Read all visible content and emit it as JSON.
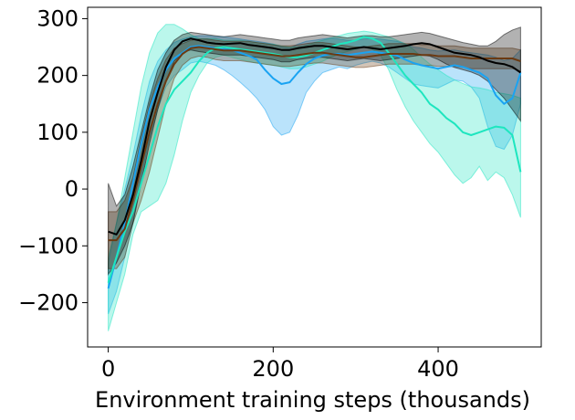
{
  "chart_data": {
    "type": "line",
    "title": "",
    "xlabel": "Environment training steps (thousands)",
    "ylabel": "",
    "xlim": [
      -25,
      525
    ],
    "ylim": [
      -278,
      320
    ],
    "xticks": [
      0,
      200,
      400
    ],
    "yticks": [
      -200,
      -100,
      0,
      100,
      200,
      300
    ],
    "xtick_labels": [
      "0",
      "200",
      "400"
    ],
    "ytick_labels": [
      "−200",
      "−100",
      "0",
      "100",
      "200",
      "300"
    ],
    "grid": false,
    "legend": "none",
    "x": [
      0,
      10,
      20,
      30,
      40,
      50,
      60,
      70,
      80,
      90,
      100,
      110,
      120,
      130,
      140,
      150,
      160,
      170,
      180,
      190,
      200,
      210,
      220,
      230,
      240,
      250,
      260,
      270,
      280,
      290,
      300,
      310,
      320,
      330,
      340,
      350,
      360,
      370,
      380,
      390,
      400,
      410,
      420,
      430,
      440,
      450,
      460,
      470,
      480,
      490,
      500
    ],
    "series": [
      {
        "color": "#1aa3f2",
        "values": [
          -175,
          -120,
          -60,
          10,
          80,
          140,
          180,
          210,
          230,
          240,
          250,
          252,
          250,
          248,
          246,
          245,
          240,
          235,
          228,
          210,
          195,
          185,
          188,
          205,
          220,
          230,
          235,
          238,
          238,
          236,
          238,
          240,
          242,
          240,
          238,
          235,
          228,
          222,
          218,
          215,
          212,
          215,
          218,
          215,
          210,
          205,
          195,
          165,
          150,
          160,
          205
        ],
        "lower": [
          -220,
          -180,
          -120,
          -60,
          20,
          90,
          140,
          180,
          200,
          210,
          222,
          225,
          222,
          218,
          210,
          200,
          188,
          175,
          160,
          140,
          110,
          95,
          100,
          130,
          170,
          190,
          205,
          210,
          215,
          212,
          218,
          222,
          225,
          222,
          215,
          205,
          195,
          185,
          182,
          180,
          178,
          185,
          192,
          190,
          180,
          160,
          110,
          75,
          70,
          95,
          150
        ],
        "upper": [
          -130,
          -60,
          0,
          60,
          130,
          190,
          225,
          245,
          258,
          264,
          268,
          270,
          270,
          268,
          268,
          266,
          264,
          262,
          260,
          258,
          255,
          250,
          248,
          255,
          260,
          262,
          264,
          266,
          264,
          262,
          262,
          264,
          265,
          264,
          262,
          260,
          255,
          250,
          248,
          245,
          243,
          244,
          245,
          242,
          240,
          238,
          236,
          232,
          226,
          230,
          245
        ]
      },
      {
        "color": "#1ee6bf",
        "values": [
          -165,
          -120,
          -75,
          -40,
          10,
          60,
          110,
          150,
          175,
          190,
          205,
          225,
          240,
          248,
          250,
          248,
          246,
          244,
          242,
          240,
          238,
          235,
          232,
          232,
          235,
          240,
          245,
          250,
          255,
          258,
          262,
          268,
          265,
          258,
          240,
          220,
          200,
          185,
          170,
          150,
          140,
          125,
          115,
          100,
          95,
          100,
          105,
          110,
          108,
          95,
          30
        ],
        "lower": [
          -250,
          -200,
          -150,
          -80,
          -40,
          -30,
          -20,
          10,
          60,
          120,
          170,
          200,
          222,
          232,
          236,
          232,
          228,
          225,
          222,
          220,
          218,
          215,
          212,
          212,
          215,
          220,
          225,
          232,
          238,
          242,
          246,
          250,
          246,
          236,
          210,
          175,
          145,
          120,
          100,
          80,
          65,
          45,
          25,
          10,
          20,
          40,
          15,
          30,
          20,
          -10,
          -50
        ],
        "upper": [
          -120,
          -60,
          20,
          100,
          180,
          240,
          275,
          290,
          290,
          282,
          272,
          265,
          265,
          265,
          262,
          262,
          262,
          260,
          258,
          256,
          255,
          252,
          250,
          250,
          253,
          258,
          262,
          266,
          270,
          274,
          276,
          278,
          276,
          272,
          268,
          262,
          256,
          246,
          232,
          220,
          210,
          200,
          192,
          186,
          180,
          178,
          175,
          170,
          168,
          165,
          160
        ]
      },
      {
        "color": "#6b3a12",
        "values": [
          -90,
          -90,
          -70,
          -20,
          40,
          100,
          150,
          190,
          220,
          238,
          248,
          250,
          248,
          246,
          244,
          244,
          244,
          242,
          240,
          238,
          236,
          234,
          234,
          236,
          238,
          240,
          240,
          238,
          236,
          234,
          232,
          232,
          234,
          236,
          238,
          238,
          238,
          238,
          236,
          236,
          234,
          234,
          234,
          232,
          230,
          230,
          230,
          230,
          230,
          230,
          225
        ],
        "lower": [
          -140,
          -140,
          -120,
          -60,
          -20,
          30,
          90,
          150,
          195,
          218,
          230,
          234,
          232,
          228,
          226,
          226,
          226,
          224,
          222,
          220,
          218,
          216,
          216,
          218,
          220,
          222,
          222,
          220,
          218,
          216,
          214,
          214,
          216,
          218,
          220,
          220,
          220,
          220,
          218,
          218,
          216,
          216,
          216,
          214,
          212,
          212,
          212,
          212,
          212,
          212,
          208
        ],
        "upper": [
          -40,
          -40,
          -20,
          20,
          90,
          150,
          195,
          228,
          248,
          256,
          262,
          264,
          264,
          262,
          260,
          260,
          260,
          260,
          258,
          256,
          254,
          252,
          252,
          254,
          256,
          258,
          258,
          256,
          254,
          252,
          250,
          250,
          252,
          254,
          256,
          256,
          256,
          256,
          254,
          254,
          252,
          252,
          252,
          250,
          248,
          248,
          248,
          248,
          248,
          248,
          245
        ]
      },
      {
        "color": "#000000",
        "values": [
          -75,
          -80,
          -55,
          -10,
          50,
          120,
          170,
          215,
          245,
          260,
          265,
          262,
          258,
          256,
          255,
          256,
          257,
          254,
          252,
          250,
          248,
          245,
          245,
          248,
          250,
          252,
          252,
          250,
          248,
          246,
          248,
          250,
          248,
          246,
          248,
          250,
          252,
          255,
          257,
          255,
          250,
          245,
          240,
          238,
          236,
          232,
          226,
          222,
          220,
          215,
          205
        ],
        "lower": [
          -150,
          -130,
          -100,
          -60,
          10,
          80,
          140,
          190,
          225,
          240,
          245,
          242,
          240,
          238,
          236,
          236,
          236,
          234,
          232,
          230,
          228,
          224,
          224,
          228,
          230,
          232,
          232,
          230,
          228,
          226,
          228,
          230,
          228,
          226,
          228,
          230,
          232,
          234,
          236,
          234,
          228,
          220,
          214,
          210,
          206,
          200,
          190,
          175,
          160,
          140,
          120
        ],
        "upper": [
          10,
          -30,
          -10,
          40,
          100,
          160,
          210,
          240,
          262,
          272,
          276,
          274,
          272,
          270,
          268,
          270,
          272,
          270,
          268,
          266,
          264,
          262,
          262,
          266,
          268,
          270,
          272,
          270,
          268,
          266,
          268,
          270,
          270,
          268,
          268,
          270,
          272,
          274,
          276,
          274,
          270,
          266,
          262,
          258,
          255,
          252,
          252,
          260,
          272,
          280,
          285
        ]
      }
    ]
  }
}
